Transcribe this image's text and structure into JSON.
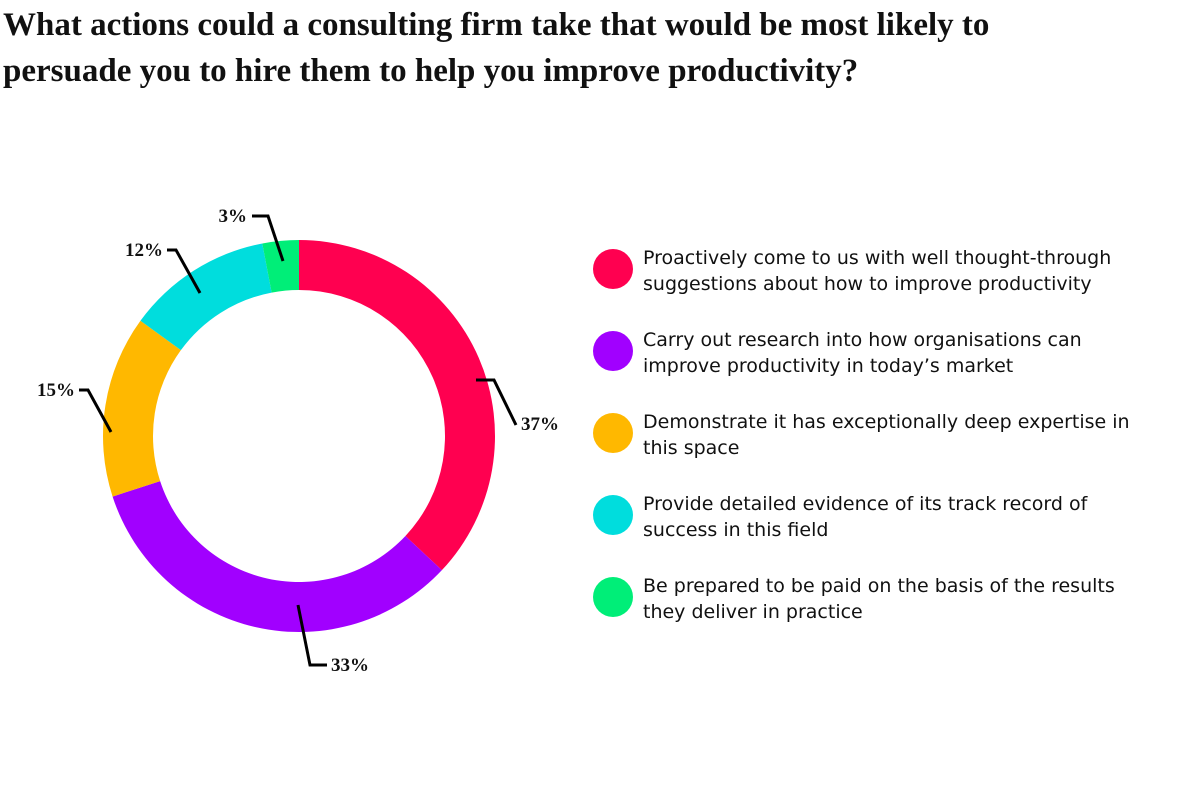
{
  "title": "What actions could a consulting firm take that would be most likely to persuade you to hire them to help you improve productivity?",
  "chart_data": {
    "type": "pie",
    "donut": true,
    "title": "What actions could a consulting firm take that would be most likely to persuade you to hire them to help you improve productivity?",
    "legend_position": "right",
    "categories": [
      "Proactively come to us with well thought-through suggestions about how to improve productivity",
      "Carry out research into how organisations can improve productivity in today’s market",
      "Demonstrate it has exceptionally deep expertise in this space",
      "Provide detailed evidence of its track record of success in this field",
      "Be prepared to be paid on the basis of the results they deliver in practice"
    ],
    "values": [
      37,
      33,
      15,
      12,
      3
    ],
    "labels": [
      "37%",
      "33%",
      "15%",
      "12%",
      "3%"
    ],
    "colors": [
      "#FF0050",
      "#A100FF",
      "#FFB800",
      "#00DDDD",
      "#00EE78"
    ]
  },
  "legend": [
    {
      "lines": [
        "Proactively come to us with well thought-through",
        "suggestions about how to improve productivity"
      ]
    },
    {
      "lines": [
        "Carry out research into how organisations can",
        "improve productivity in today’s market"
      ]
    },
    {
      "lines": [
        "Demonstrate it has exceptionally deep expertise in",
        "this space"
      ]
    },
    {
      "lines": [
        "Provide detailed evidence of its track record of",
        "success in this field"
      ]
    },
    {
      "lines": [
        "Be prepared to be paid on the basis of the results",
        "they deliver in practice"
      ]
    }
  ]
}
